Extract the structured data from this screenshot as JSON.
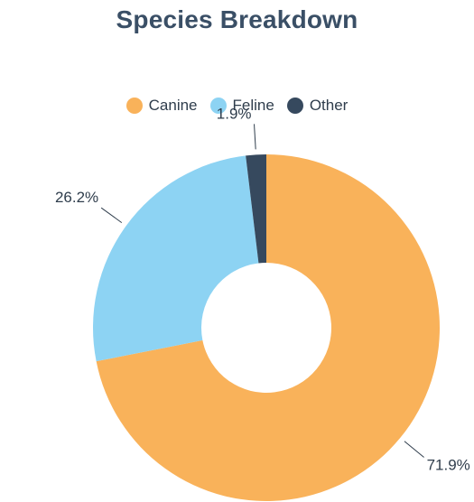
{
  "chart_data": {
    "type": "pie",
    "title": "Species Breakdown",
    "donut": true,
    "legend_position": "top",
    "slices": [
      {
        "name": "Canine",
        "value": 71.9,
        "label": "71.9%",
        "color": "#F9B25A"
      },
      {
        "name": "Feline",
        "value": 26.2,
        "label": "26.2%",
        "color": "#8DD3F3"
      },
      {
        "name": "Other",
        "value": 1.9,
        "label": "1.9%",
        "color": "#36495E"
      }
    ]
  }
}
